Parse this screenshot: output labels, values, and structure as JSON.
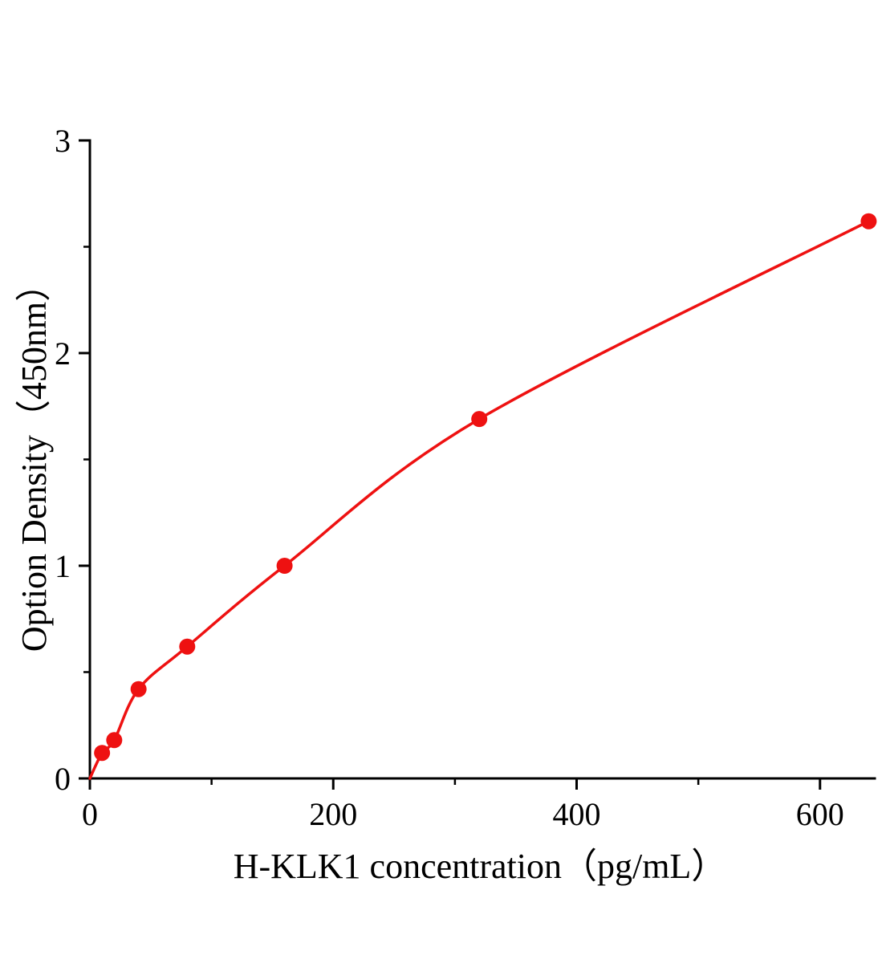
{
  "chart_data": {
    "type": "scatter",
    "title": "",
    "xlabel": "H-KLK1 concentration（pg/mL）",
    "ylabel": "Option Density（450nm）",
    "x": [
      10,
      20,
      40,
      80,
      160,
      320,
      640
    ],
    "y": [
      0.12,
      0.18,
      0.42,
      0.62,
      1.0,
      1.69,
      2.62
    ],
    "curve": "smooth-through-points-from-origin",
    "xlim": [
      0,
      645
    ],
    "ylim": [
      0,
      3
    ],
    "x_major_ticks": [
      0,
      200,
      400,
      600
    ],
    "x_minor_ticks": [
      100,
      300,
      500
    ],
    "y_major_ticks": [
      0,
      1,
      2,
      3
    ],
    "y_minor_ticks": [
      0.5,
      1.5,
      2.5
    ],
    "grid": "off",
    "legend": "none",
    "line_color": "#ee1111",
    "marker_color": "#ee1111",
    "axis_color": "#000000"
  }
}
